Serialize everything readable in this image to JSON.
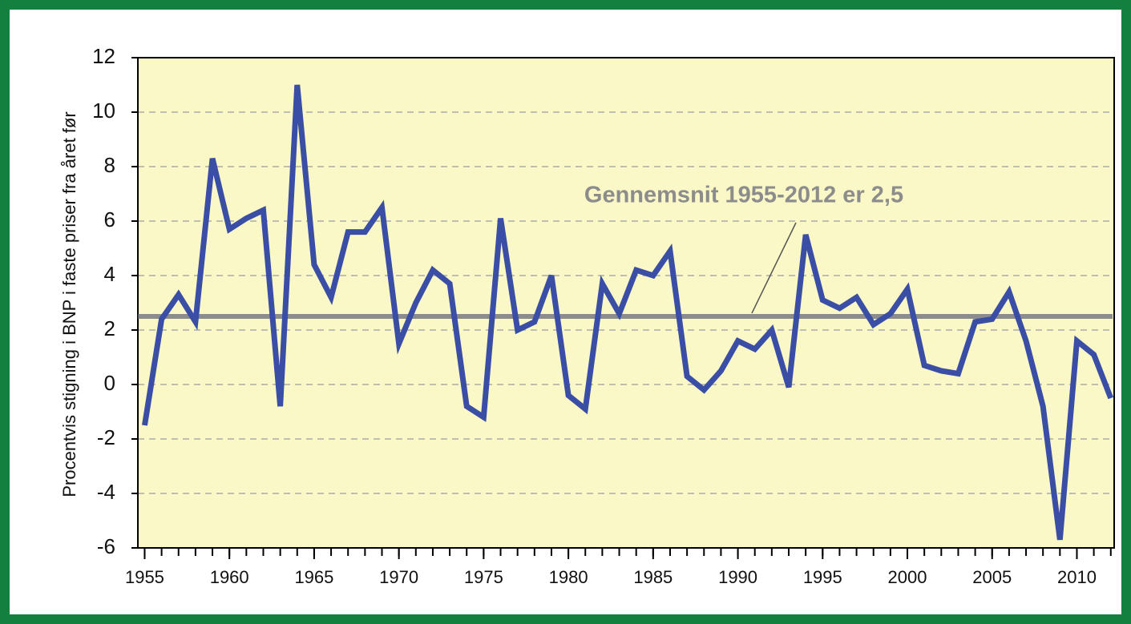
{
  "chart_data": {
    "type": "line",
    "y_label": "Procentvis stigning i BNP i faste priser fra året før",
    "annotation": "Gennemsnit 1955-2012 er 2,5",
    "x": [
      1955,
      1956,
      1957,
      1958,
      1959,
      1960,
      1961,
      1962,
      1963,
      1964,
      1965,
      1966,
      1967,
      1968,
      1969,
      1970,
      1971,
      1972,
      1973,
      1974,
      1975,
      1976,
      1977,
      1978,
      1979,
      1980,
      1981,
      1982,
      1983,
      1984,
      1985,
      1986,
      1987,
      1988,
      1989,
      1990,
      1991,
      1992,
      1993,
      1994,
      1995,
      1996,
      1997,
      1998,
      1999,
      2000,
      2001,
      2002,
      2003,
      2004,
      2005,
      2006,
      2007,
      2008,
      2009,
      2010,
      2011,
      2012
    ],
    "series": [
      {
        "color": "#3a4ea6",
        "values": [
          -1.5,
          2.4,
          3.3,
          2.3,
          8.3,
          5.7,
          6.1,
          6.4,
          -0.8,
          11.0,
          4.4,
          3.2,
          5.6,
          5.6,
          6.5,
          1.5,
          3.0,
          4.2,
          3.7,
          -0.8,
          -1.2,
          6.1,
          2.0,
          2.3,
          4.0,
          -0.4,
          -0.9,
          3.7,
          2.6,
          4.2,
          4.0,
          4.9,
          0.3,
          -0.2,
          0.5,
          1.6,
          1.3,
          2.0,
          -0.1,
          5.5,
          3.1,
          2.8,
          3.2,
          2.2,
          2.6,
          3.5,
          0.7,
          0.5,
          0.4,
          2.3,
          2.4,
          3.4,
          1.6,
          -0.8,
          -5.7,
          1.6,
          1.1,
          -0.5
        ]
      }
    ],
    "reference_line": {
      "value": 2.5,
      "color": "#8c8c8c"
    },
    "xlim": [
      1954.6,
      2012.2
    ],
    "xticks": [
      1955,
      1960,
      1965,
      1970,
      1975,
      1980,
      1985,
      1990,
      1995,
      2000,
      2005,
      2010
    ],
    "ylim": [
      -6,
      12
    ],
    "yticks": [
      -6,
      -4,
      -2,
      0,
      2,
      4,
      6,
      8,
      10,
      12
    ],
    "grid": true
  }
}
